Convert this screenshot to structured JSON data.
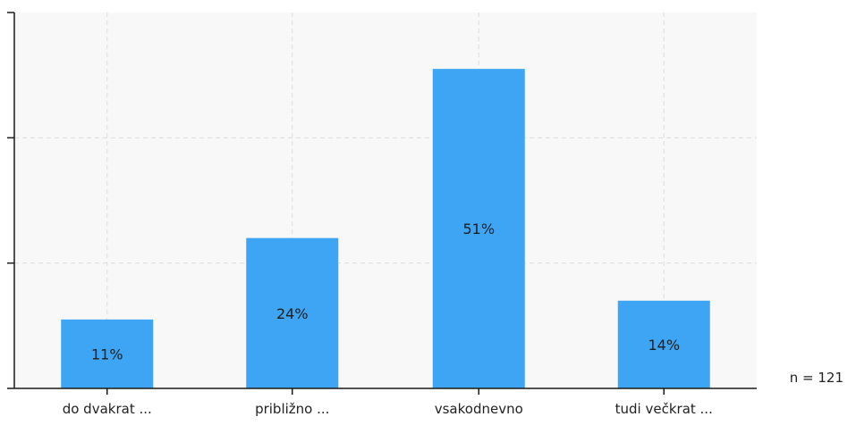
{
  "chart_data": {
    "type": "bar",
    "categories": [
      "do dvakrat ...",
      "približno ...",
      "vsakodnevno",
      "tudi večkrat ..."
    ],
    "values": [
      11,
      24,
      51,
      14
    ],
    "value_labels": [
      "11%",
      "24%",
      "51%",
      "14%"
    ],
    "ylim": [
      0,
      60
    ],
    "grid": true,
    "bar_color": "#3da5f4",
    "n_label": "n = 121"
  }
}
